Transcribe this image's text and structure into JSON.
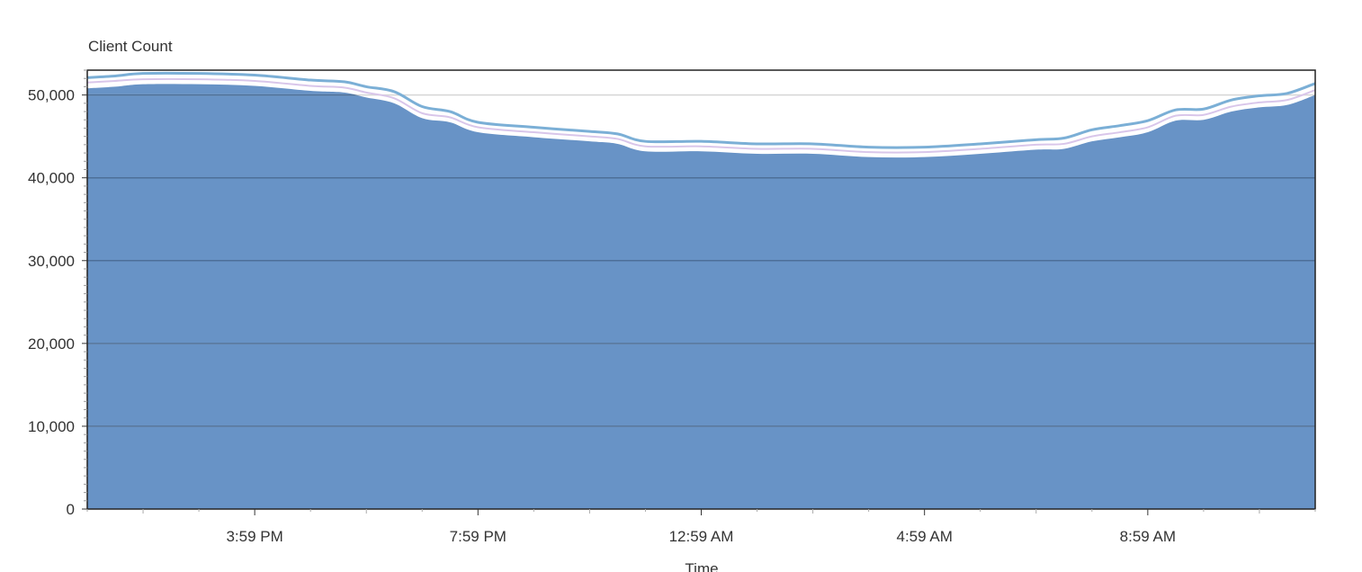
{
  "chart_data": {
    "type": "area",
    "ylabel": "Client Count",
    "xlabel": "Time",
    "ylim": [
      0,
      53000
    ],
    "yticks": [
      0,
      10000,
      20000,
      30000,
      40000,
      50000
    ],
    "ytick_labels": [
      "0",
      "10,000",
      "20,000",
      "30,000",
      "40,000",
      "50,000"
    ],
    "xticks": [
      {
        "value": 2,
        "label": "3:59 PM"
      },
      {
        "value": 6,
        "label": "7:59 PM"
      },
      {
        "value": 10,
        "label": "12:59 AM"
      },
      {
        "value": 14,
        "label": "4:59 AM"
      },
      {
        "value": 18,
        "label": "8:59 AM"
      }
    ],
    "xlim": [
      -1,
      21
    ],
    "grid": true,
    "colors": {
      "area_fill": "#6893c6",
      "upper_line": "#7bafd6",
      "middle_line": "#d9c6ea",
      "plot_border": "#222222",
      "gridline_over_area": "#4d6f98",
      "gridline_over_background": "#d6d6d6"
    },
    "x": [
      -1,
      -0.5,
      0,
      1,
      2,
      3,
      3.6,
      4,
      4.5,
      5,
      5.5,
      6,
      7,
      8,
      8.5,
      9,
      10,
      11,
      12,
      13,
      14,
      15,
      16,
      16.5,
      17,
      17.5,
      18,
      18.5,
      19,
      19.5,
      20,
      20.5,
      21
    ],
    "series": [
      {
        "values": [
          50800,
          51000,
          51300,
          51300,
          51100,
          50500,
          50300,
          49700,
          49000,
          47200,
          46700,
          45500,
          44900,
          44400,
          44100,
          43200,
          43200,
          42900,
          42900,
          42500,
          42500,
          42900,
          43400,
          43500,
          44400,
          44900,
          45500,
          46900,
          47000,
          48000,
          48500,
          48800,
          50000
        ]
      },
      {
        "values": [
          51500,
          51700,
          51900,
          51900,
          51700,
          51100,
          50900,
          50300,
          49600,
          47800,
          47300,
          46100,
          45500,
          45000,
          44700,
          43800,
          43800,
          43500,
          43500,
          43100,
          43100,
          43500,
          44000,
          44100,
          45000,
          45500,
          46100,
          47500,
          47600,
          48600,
          49100,
          49400,
          50600
        ]
      },
      {
        "values": [
          52100,
          52300,
          52600,
          52600,
          52400,
          51800,
          51600,
          51000,
          50400,
          48600,
          48000,
          46700,
          46100,
          45600,
          45300,
          44400,
          44400,
          44100,
          44100,
          43700,
          43700,
          44100,
          44600,
          44800,
          45800,
          46300,
          46900,
          48200,
          48300,
          49400,
          49900,
          50200,
          51400
        ]
      }
    ]
  }
}
